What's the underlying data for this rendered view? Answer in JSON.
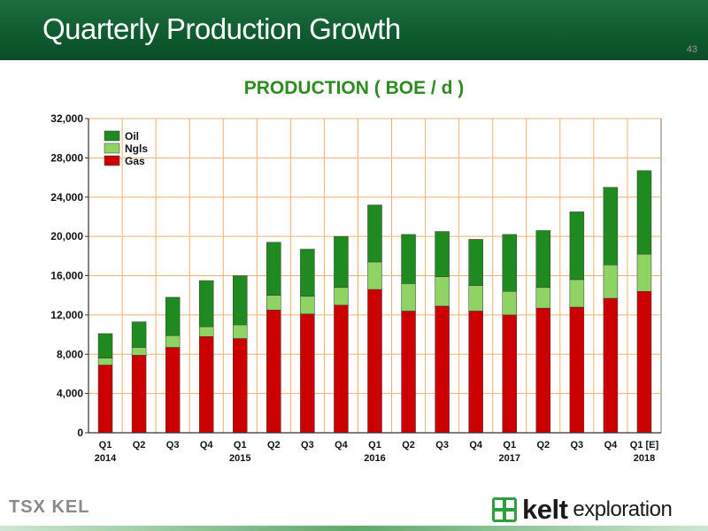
{
  "header": {
    "title": "Quarterly Production Growth",
    "page_number": "43"
  },
  "colors": {
    "oil": "#1f8a1f",
    "ngls": "#8ed363",
    "gas": "#cc0000",
    "header_green": "#0f5a2f",
    "title_green": "#2e8b1f"
  },
  "chart_data": {
    "type": "bar",
    "stacked": true,
    "title": "PRODUCTION ( BOE / d )",
    "xlabel": "",
    "ylabel": "",
    "ylim": [
      0,
      32000
    ],
    "yticks": [
      "0",
      "4,000",
      "8,000",
      "12,000",
      "16,000",
      "20,000",
      "24,000",
      "28,000",
      "32,000"
    ],
    "grid": true,
    "legend_position": "top-left",
    "categories": [
      {
        "q": "Q1",
        "year": "2014"
      },
      {
        "q": "Q2",
        "year": ""
      },
      {
        "q": "Q3",
        "year": ""
      },
      {
        "q": "Q4",
        "year": ""
      },
      {
        "q": "Q1",
        "year": "2015"
      },
      {
        "q": "Q2",
        "year": ""
      },
      {
        "q": "Q3",
        "year": ""
      },
      {
        "q": "Q4",
        "year": ""
      },
      {
        "q": "Q1",
        "year": "2016"
      },
      {
        "q": "Q2",
        "year": ""
      },
      {
        "q": "Q3",
        "year": ""
      },
      {
        "q": "Q4",
        "year": ""
      },
      {
        "q": "Q1",
        "year": "2017"
      },
      {
        "q": "Q2",
        "year": ""
      },
      {
        "q": "Q3",
        "year": ""
      },
      {
        "q": "Q4",
        "year": ""
      },
      {
        "q": "Q1 [E]",
        "year": "2018"
      }
    ],
    "series": [
      {
        "name": "Gas",
        "values": [
          6900,
          7900,
          8700,
          9800,
          9600,
          12500,
          12100,
          13000,
          14600,
          12400,
          12900,
          12400,
          12000,
          12700,
          12800,
          13700,
          14400
        ]
      },
      {
        "name": "Ngls",
        "values": [
          700,
          800,
          1200,
          1000,
          1400,
          1500,
          1800,
          1800,
          2800,
          2800,
          3000,
          2600,
          2400,
          2100,
          2800,
          3400,
          3800
        ]
      },
      {
        "name": "Oil",
        "values": [
          2500,
          2600,
          3900,
          4700,
          5000,
          5400,
          4800,
          5200,
          5800,
          5000,
          4600,
          4700,
          5800,
          5800,
          6900,
          7900,
          8500
        ]
      }
    ],
    "legend": [
      "Oil",
      "Ngls",
      "Gas"
    ]
  },
  "footer": {
    "tsx_logo": "TSX KEL",
    "brand_name": "kelt",
    "brand_sub": "exploration"
  }
}
